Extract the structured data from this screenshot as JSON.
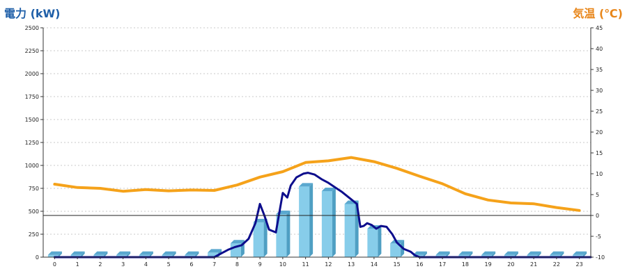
{
  "chart_data": {
    "type": "bar+line",
    "ylabel_left": "電力 (kW)",
    "ylabel_right": "気温 (℃)",
    "colors": {
      "bar": "#87cdea",
      "bar_side": "#4f9fc3",
      "bar_top": "#5aa8cf",
      "power_line": "#0d0d8c",
      "temp_line": "#f5a21a",
      "grid": "#c8c8c8",
      "label_left": "#1f5fa8",
      "label_right": "#e8861a"
    },
    "y_left": {
      "min": 0,
      "max": 2500,
      "ticks": [
        "0",
        "250",
        "500",
        "750",
        "1000",
        "1250",
        "1500",
        "1750",
        "2000",
        "2250",
        "2500"
      ]
    },
    "y_right": {
      "min": -10,
      "max": 45,
      "ticks": [
        "-10",
        "-5",
        "0",
        "5",
        "10",
        "15",
        "20",
        "25",
        "30",
        "35",
        "40",
        "45"
      ]
    },
    "categories": [
      "0",
      "1",
      "2",
      "3",
      "4",
      "5",
      "6",
      "7",
      "8",
      "9",
      "10",
      "11",
      "12",
      "13",
      "14",
      "15",
      "16",
      "17",
      "18",
      "19",
      "20",
      "21",
      "22",
      "23"
    ],
    "bar_values": [
      25,
      25,
      25,
      25,
      25,
      25,
      25,
      50,
      150,
      380,
      470,
      770,
      720,
      580,
      310,
      150,
      25,
      25,
      25,
      25,
      25,
      25,
      25,
      25
    ],
    "power_line": {
      "x": [
        0,
        7,
        7.3,
        7.6,
        7.9,
        8.2,
        8.5,
        8.8,
        9.0,
        9.2,
        9.4,
        9.7,
        10.0,
        10.2,
        10.35,
        10.6,
        10.9,
        11.1,
        11.4,
        11.7,
        12.0,
        12.3,
        12.6,
        13.0,
        13.25,
        13.4,
        13.55,
        13.7,
        13.9,
        14.1,
        14.3,
        14.55,
        14.8,
        15.0,
        15.3,
        15.6,
        15.8,
        16.0,
        23.5
      ],
      "y": [
        0,
        0,
        40,
        80,
        110,
        130,
        200,
        370,
        580,
        450,
        300,
        270,
        700,
        650,
        780,
        870,
        910,
        920,
        900,
        850,
        810,
        760,
        710,
        630,
        580,
        330,
        340,
        370,
        350,
        310,
        340,
        330,
        250,
        160,
        90,
        60,
        20,
        0,
        0
      ]
    },
    "temp_line": {
      "x": [
        0,
        1,
        2,
        3,
        4,
        5,
        6,
        7,
        8,
        9,
        10,
        11,
        12,
        13,
        14,
        15,
        16,
        17,
        18,
        19,
        20,
        21,
        22,
        23
      ],
      "y": [
        7.5,
        6.7,
        6.5,
        5.8,
        6.2,
        5.9,
        6.1,
        6.0,
        7.3,
        9.2,
        10.5,
        12.7,
        13.1,
        13.9,
        12.9,
        11.3,
        9.4,
        7.6,
        5.2,
        3.7,
        3.0,
        2.8,
        1.9,
        1.2
      ]
    },
    "grid": true
  }
}
